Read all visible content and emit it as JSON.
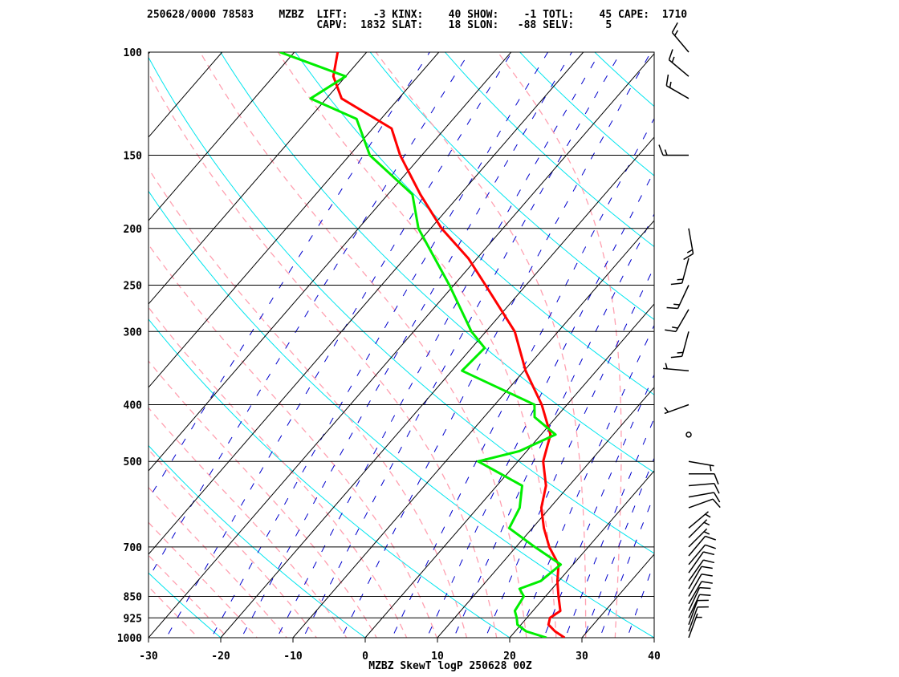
{
  "header": {
    "line1": "250628/0000 78583    MZBZ  LIFT:    -3 KINX:    40 SHOW:    -1 TOTL:    45 CAPE:  1710",
    "line2": "                           CAPV:  1832 SLAT:    18 SLON:   -88 SELV:     5"
  },
  "footer_title": "MZBZ SkewT logP 250628 00Z",
  "chart_data": {
    "type": "line",
    "title": "MZBZ SkewT logP 250628 00Z",
    "xlabel": "",
    "ylabel": "",
    "x_scale": "skewed temperature (deg C)",
    "y_scale": "log pressure (hPa), inverted",
    "xlim": [
      -30,
      40
    ],
    "ylim": [
      1000,
      100
    ],
    "x_ticks": [
      -30,
      -20,
      -10,
      0,
      10,
      20,
      30,
      40
    ],
    "y_ticks": [
      100,
      150,
      200,
      250,
      300,
      400,
      500,
      700,
      850,
      925,
      1000
    ],
    "grid": true,
    "colors": {
      "temperature": "#ff0000",
      "dewpoint": "#00ee00",
      "dry_adiabats": "#00e5ee",
      "moist_adiabats": "#ffa0b0",
      "mixing_ratio": "#0000cc",
      "isotherms": "#000000",
      "wind_barbs": "#000000"
    },
    "series": [
      {
        "key": "temperature",
        "pressure": [
          1000,
          975,
          950,
          925,
          900,
          850,
          800,
          750,
          700,
          650,
          600,
          550,
          500,
          450,
          400,
          350,
          300,
          250,
          225,
          200,
          175,
          150,
          135,
          120,
          110,
          100
        ],
        "values": [
          27.6,
          25.5,
          23.8,
          23.2,
          23.8,
          21.8,
          19.8,
          18.0,
          14.6,
          11.6,
          8.8,
          6.8,
          3.5,
          1.3,
          -3.5,
          -9.8,
          -16.0,
          -25.6,
          -31.2,
          -38.5,
          -45.5,
          -53.0,
          -57.4,
          -67.9,
          -71.7,
          -74.0
        ]
      },
      {
        "key": "dewpoint",
        "pressure": [
          1000,
          975,
          950,
          925,
          900,
          850,
          825,
          800,
          750,
          700,
          650,
          600,
          550,
          500,
          480,
          450,
          420,
          400,
          350,
          320,
          300,
          250,
          200,
          175,
          150,
          130,
          120,
          110,
          100
        ],
        "values": [
          25.1,
          21.5,
          19.5,
          18.6,
          17.5,
          17.0,
          15.5,
          17.5,
          18.3,
          12.6,
          6.8,
          5.8,
          3.5,
          -5.5,
          -1.0,
          2.0,
          -3.0,
          -4.5,
          -18.6,
          -18.2,
          -22.0,
          -30.6,
          -41.7,
          -46.6,
          -57.2,
          -63.4,
          -72.2,
          -70.0,
          -82.0
        ]
      }
    ],
    "wind_barbs": {
      "pressure": [
        1000,
        975,
        950,
        925,
        900,
        875,
        850,
        825,
        800,
        775,
        750,
        725,
        700,
        675,
        650,
        600,
        575,
        550,
        525,
        500,
        450,
        400,
        350,
        300,
        275,
        250,
        225,
        200,
        150,
        120,
        110,
        100
      ],
      "direction_deg": [
        20,
        20,
        20,
        25,
        25,
        30,
        30,
        30,
        35,
        35,
        40,
        40,
        45,
        45,
        50,
        70,
        80,
        85,
        90,
        100,
        0,
        250,
        275,
        195,
        210,
        205,
        195,
        170,
        270,
        300,
        310,
        320
      ],
      "speed_kt": [
        5,
        10,
        10,
        10,
        10,
        10,
        10,
        10,
        10,
        10,
        10,
        10,
        5,
        5,
        5,
        10,
        10,
        10,
        10,
        5,
        0,
        5,
        5,
        15,
        15,
        15,
        15,
        15,
        15,
        15,
        15,
        15
      ]
    }
  }
}
